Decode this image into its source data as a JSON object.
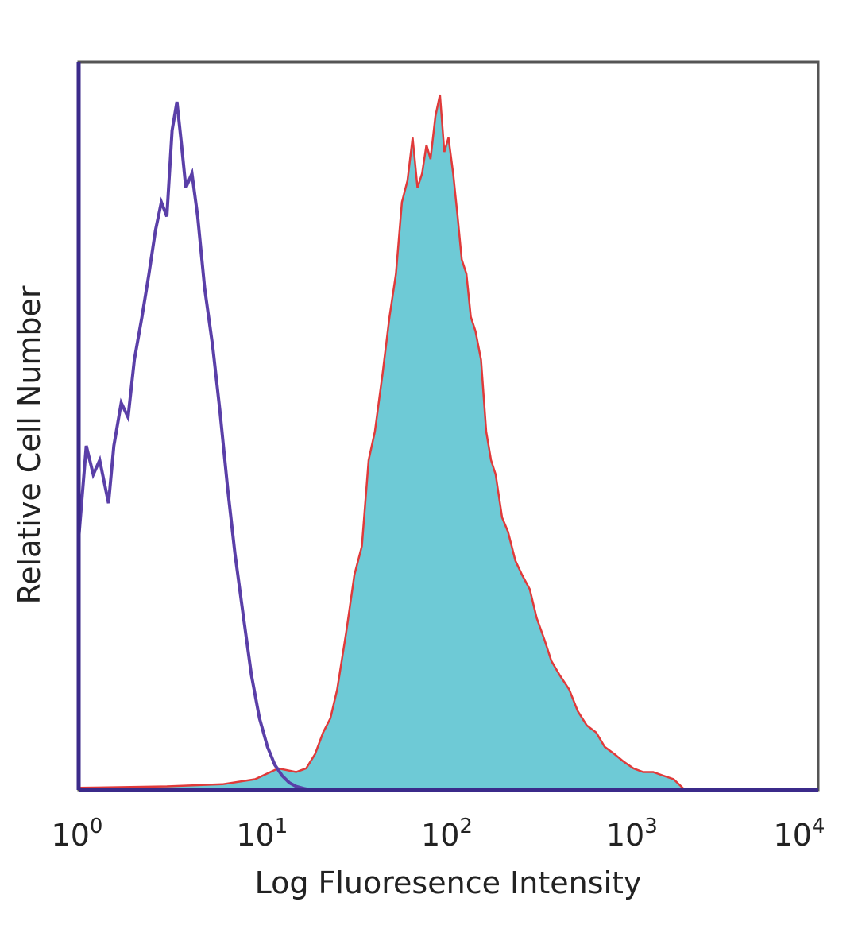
{
  "chart_data": {
    "type": "area",
    "xlabel": "Log Fluoresence Intensity",
    "ylabel": "Relative Cell Number",
    "x_scale": "log10",
    "xlim": [
      1,
      10000
    ],
    "ylim": [
      0,
      100
    ],
    "x_ticks": [
      {
        "value": 1,
        "base": "10",
        "exp": "0"
      },
      {
        "value": 10,
        "base": "10",
        "exp": "1"
      },
      {
        "value": 100,
        "base": "10",
        "exp": "2"
      },
      {
        "value": 1000,
        "base": "10",
        "exp": "3"
      },
      {
        "value": 10000,
        "base": "10",
        "exp": "4"
      }
    ],
    "grid": false,
    "legend": "none",
    "series": [
      {
        "style": "outline",
        "color": "#5a3fa8",
        "x": [
          1,
          1.1,
          1.2,
          1.3,
          1.45,
          1.55,
          1.7,
          1.85,
          2.0,
          2.2,
          2.4,
          2.6,
          2.8,
          3.0,
          3.2,
          3.4,
          3.6,
          3.8,
          4.1,
          4.4,
          4.8,
          5.3,
          5.8,
          6.4,
          7.0,
          7.8,
          8.6,
          9.5,
          10.5,
          11.5,
          12.6,
          13.8,
          15.0,
          16.5,
          18,
          25,
          10000
        ],
        "y": [
          35,
          48,
          44,
          46,
          40,
          48,
          54,
          52,
          60,
          66,
          72,
          78,
          82,
          80,
          92,
          96,
          90,
          84,
          86,
          80,
          70,
          62,
          53,
          42,
          33,
          24,
          16,
          10,
          6,
          3.5,
          2,
          1,
          0.5,
          0.2,
          0,
          0,
          0
        ]
      },
      {
        "style": "filled",
        "fill": "#6ecad6",
        "edge_color": "#e03a3a",
        "x": [
          1,
          3,
          6,
          9,
          12,
          15,
          17,
          19,
          21,
          23,
          25,
          28,
          31,
          34,
          37,
          40,
          44,
          48,
          52,
          56,
          60,
          64,
          68,
          72,
          76,
          80,
          85,
          90,
          95,
          100,
          106,
          112,
          118,
          125,
          132,
          140,
          150,
          160,
          170,
          180,
          195,
          210,
          230,
          250,
          275,
          300,
          330,
          360,
          400,
          450,
          500,
          560,
          630,
          700,
          790,
          880,
          1000,
          1130,
          1280,
          1450,
          1650,
          1900,
          10000
        ],
        "y": [
          0.3,
          0.5,
          0.8,
          1.5,
          3,
          2.5,
          3,
          5,
          8,
          10,
          14,
          22,
          30,
          34,
          46,
          50,
          58,
          66,
          72,
          82,
          85,
          91,
          84,
          86,
          90,
          88,
          94,
          97,
          89,
          91,
          86,
          80,
          74,
          72,
          66,
          64,
          60,
          50,
          46,
          44,
          38,
          36,
          32,
          30,
          28,
          24,
          21,
          18,
          16,
          14,
          11,
          9,
          8,
          6,
          5,
          4,
          3,
          2.5,
          2.5,
          2,
          1.5,
          0,
          0
        ]
      }
    ]
  }
}
